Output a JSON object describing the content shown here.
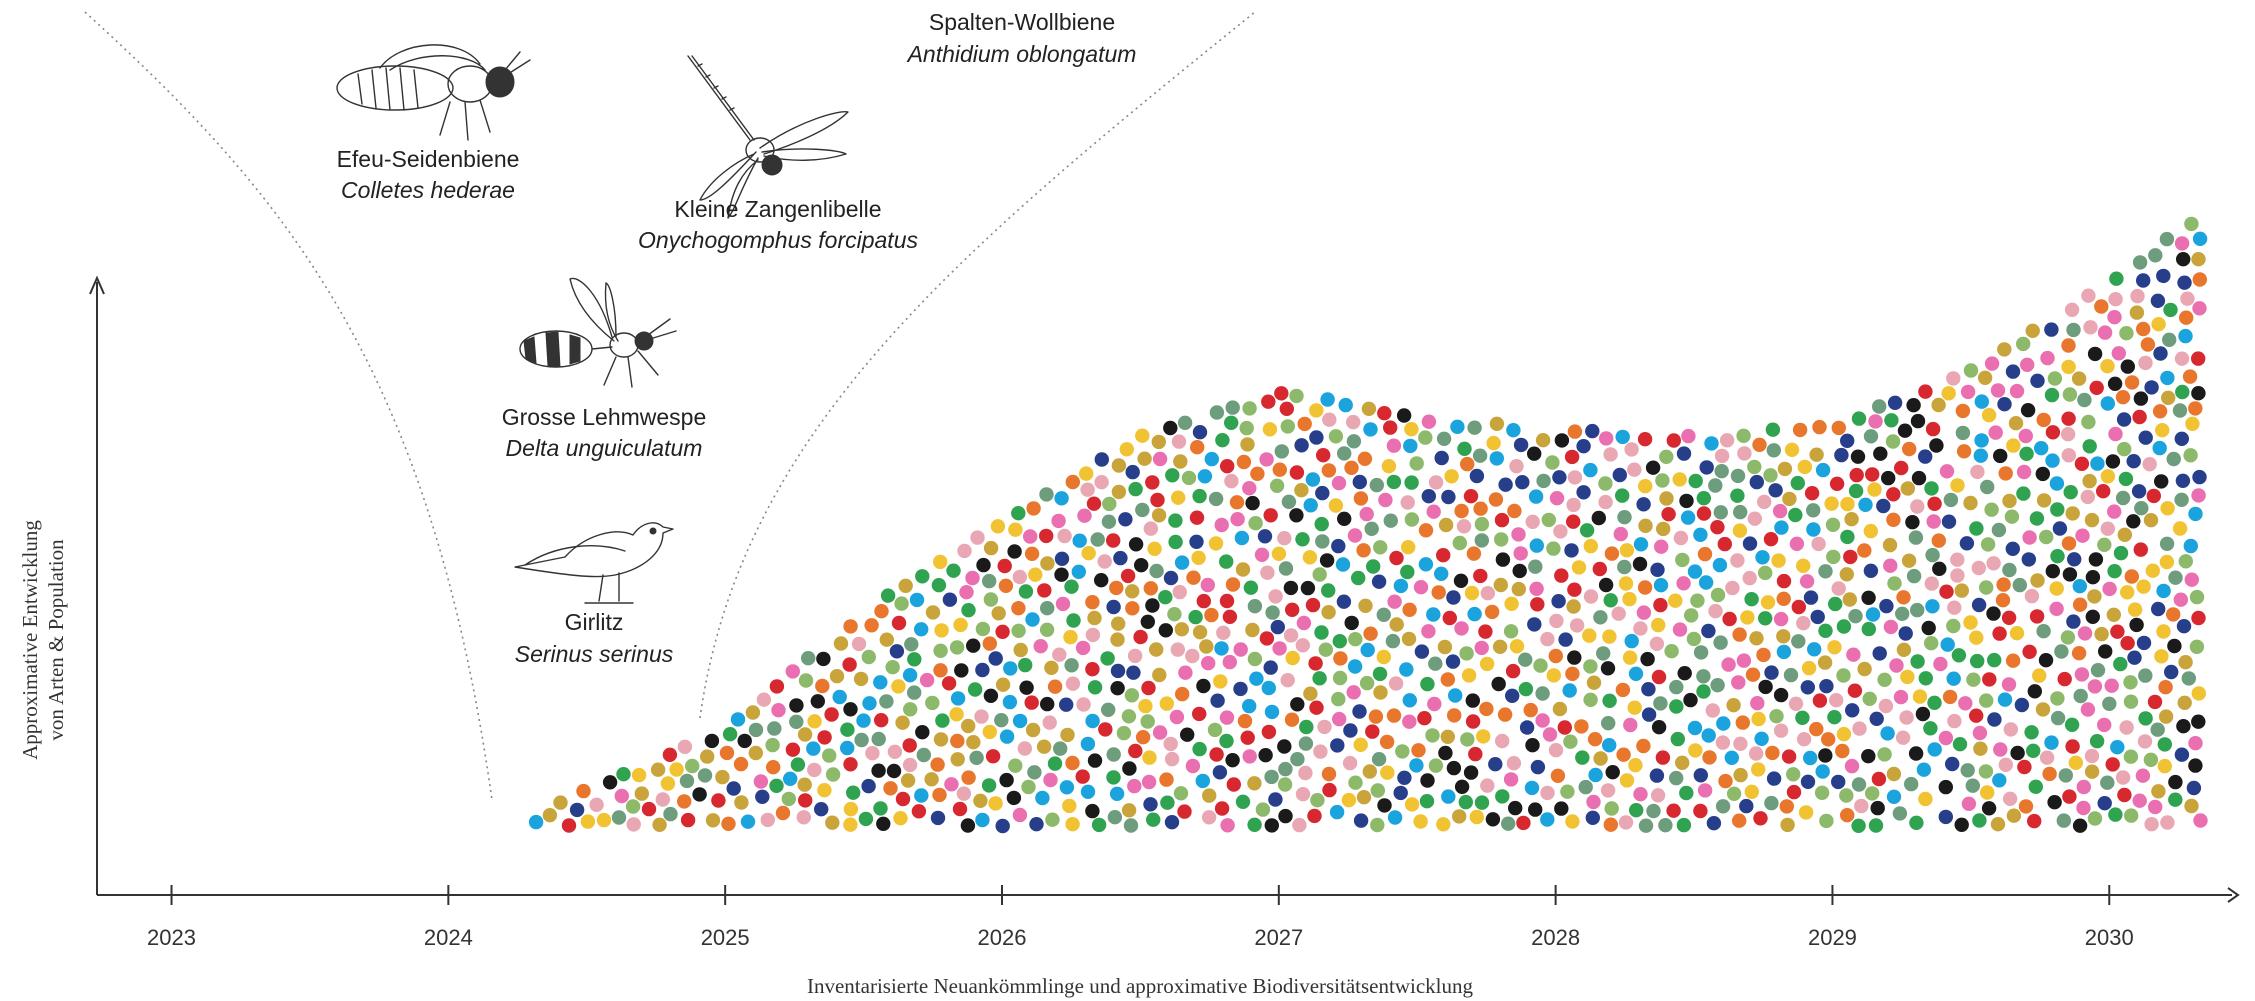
{
  "chart_data": {
    "type": "scatter",
    "title": "",
    "xlabel": "Inventarisierte Neuankömmlinge und approximative Biodiversitätsentwicklung",
    "ylabel": [
      "Approximative Entwicklung",
      "von Arten & Population"
    ],
    "xlim": [
      2022.85,
      2030.4
    ],
    "x_ticks": [
      "2023",
      "2024",
      "2025",
      "2026",
      "2027",
      "2028",
      "2029",
      "2030"
    ],
    "y_ticks": [],
    "grid": false,
    "legend": "none",
    "dot_colors": [
      "#e8762c",
      "#1aa3dc",
      "#d7272f",
      "#6d9d7c",
      "#f1c232",
      "#8db96b",
      "#e96fb0",
      "#273f8a",
      "#e9a7b3",
      "#1a1a1a",
      "#2fa34f",
      "#c9a43b"
    ],
    "envelope": {
      "start_year": 2024.3,
      "years": [
        2024.3,
        2025,
        2025.5,
        2026,
        2026.5,
        2027,
        2027.5,
        2028,
        2028.5,
        2029,
        2029.5,
        2030,
        2030.3
      ],
      "upper": [
        0.02,
        0.15,
        0.33,
        0.47,
        0.6,
        0.67,
        0.63,
        0.61,
        0.6,
        0.62,
        0.7,
        0.84,
        0.93
      ]
    },
    "annotations": [
      {
        "name": "Efeu-Seidenbiene",
        "latin": "Colletes hederae"
      },
      {
        "name": "Kleine Zangenlibelle",
        "latin": "Onychogomphus forcipatus"
      },
      {
        "name": "Spalten-Wollbiene",
        "latin": "Anthidium oblongatum"
      },
      {
        "name": "Grosse Lehmwespe",
        "latin": "Delta unguiculatum"
      },
      {
        "name": "Girlitz",
        "latin": "Serinus serinus"
      }
    ]
  }
}
